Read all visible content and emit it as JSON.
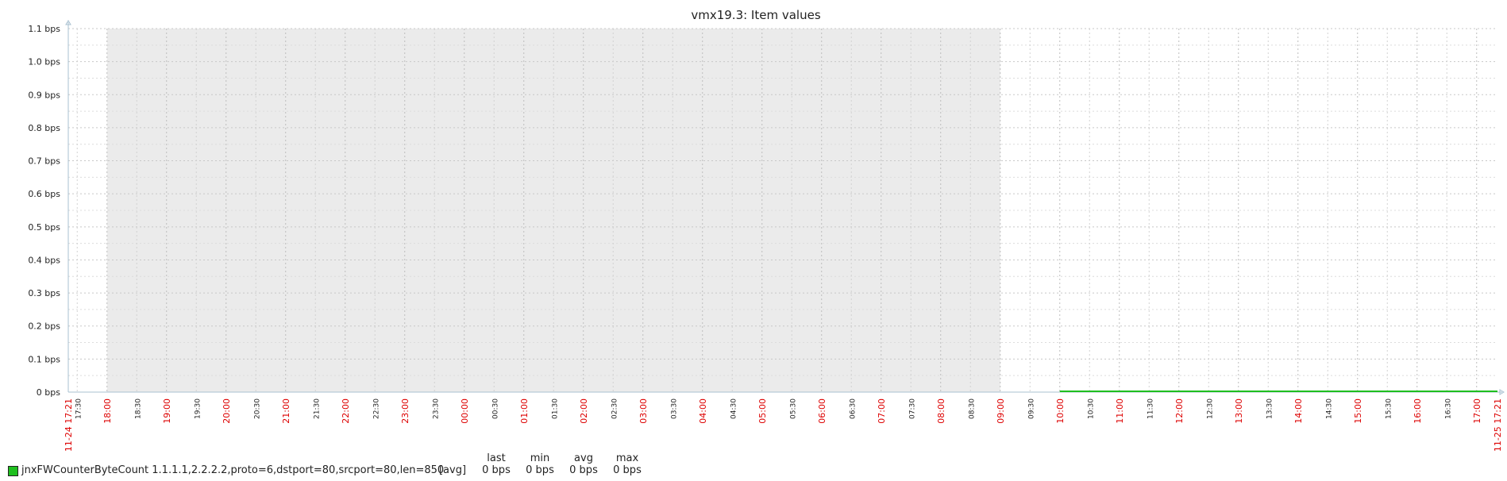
{
  "chart_data": {
    "type": "line",
    "title": "vmx19.3: Item values",
    "y_unit": "bps",
    "ylim": [
      0,
      1.1
    ],
    "y_ticks": [
      "0 bps",
      "0.1 bps",
      "0.2 bps",
      "0.3 bps",
      "0.4 bps",
      "0.5 bps",
      "0.6 bps",
      "0.7 bps",
      "0.8 bps",
      "0.9 bps",
      "1.0 bps",
      "1.1 bps"
    ],
    "x_range": [
      "11-24 17:21",
      "11-25 17:21"
    ],
    "x_start_label": "11-24 17:21",
    "x_end_label": "11-25 17:21",
    "x_ticks": [
      {
        "time": "11-24 17:30",
        "label": "17:30",
        "major": false
      },
      {
        "time": "11-24 18:00",
        "label": "18:00",
        "major": true
      },
      {
        "time": "11-24 18:30",
        "label": "18:30",
        "major": false
      },
      {
        "time": "11-24 19:00",
        "label": "19:00",
        "major": true
      },
      {
        "time": "11-24 19:30",
        "label": "19:30",
        "major": false
      },
      {
        "time": "11-24 20:00",
        "label": "20:00",
        "major": true
      },
      {
        "time": "11-24 20:30",
        "label": "20:30",
        "major": false
      },
      {
        "time": "11-24 21:00",
        "label": "21:00",
        "major": true
      },
      {
        "time": "11-24 21:30",
        "label": "21:30",
        "major": false
      },
      {
        "time": "11-24 22:00",
        "label": "22:00",
        "major": true
      },
      {
        "time": "11-24 22:30",
        "label": "22:30",
        "major": false
      },
      {
        "time": "11-24 23:00",
        "label": "23:00",
        "major": true
      },
      {
        "time": "11-24 23:30",
        "label": "23:30",
        "major": false
      },
      {
        "time": "11-25 00:00",
        "label": "00:00",
        "major": true
      },
      {
        "time": "11-25 00:30",
        "label": "00:30",
        "major": false
      },
      {
        "time": "11-25 01:00",
        "label": "01:00",
        "major": true
      },
      {
        "time": "11-25 01:30",
        "label": "01:30",
        "major": false
      },
      {
        "time": "11-25 02:00",
        "label": "02:00",
        "major": true
      },
      {
        "time": "11-25 02:30",
        "label": "02:30",
        "major": false
      },
      {
        "time": "11-25 03:00",
        "label": "03:00",
        "major": true
      },
      {
        "time": "11-25 03:30",
        "label": "03:30",
        "major": false
      },
      {
        "time": "11-25 04:00",
        "label": "04:00",
        "major": true
      },
      {
        "time": "11-25 04:30",
        "label": "04:30",
        "major": false
      },
      {
        "time": "11-25 05:00",
        "label": "05:00",
        "major": true
      },
      {
        "time": "11-25 05:30",
        "label": "05:30",
        "major": false
      },
      {
        "time": "11-25 06:00",
        "label": "06:00",
        "major": true
      },
      {
        "time": "11-25 06:30",
        "label": "06:30",
        "major": false
      },
      {
        "time": "11-25 07:00",
        "label": "07:00",
        "major": true
      },
      {
        "time": "11-25 07:30",
        "label": "07:30",
        "major": false
      },
      {
        "time": "11-25 08:00",
        "label": "08:00",
        "major": true
      },
      {
        "time": "11-25 08:30",
        "label": "08:30",
        "major": false
      },
      {
        "time": "11-25 09:00",
        "label": "09:00",
        "major": true
      },
      {
        "time": "11-25 09:30",
        "label": "09:30",
        "major": false
      },
      {
        "time": "11-25 10:00",
        "label": "10:00",
        "major": true
      },
      {
        "time": "11-25 10:30",
        "label": "10:30",
        "major": false
      },
      {
        "time": "11-25 11:00",
        "label": "11:00",
        "major": true
      },
      {
        "time": "11-25 11:30",
        "label": "11:30",
        "major": false
      },
      {
        "time": "11-25 12:00",
        "label": "12:00",
        "major": true
      },
      {
        "time": "11-25 12:30",
        "label": "12:30",
        "major": false
      },
      {
        "time": "11-25 13:00",
        "label": "13:00",
        "major": true
      },
      {
        "time": "11-25 13:30",
        "label": "13:30",
        "major": false
      },
      {
        "time": "11-25 14:00",
        "label": "14:00",
        "major": true
      },
      {
        "time": "11-25 14:30",
        "label": "14:30",
        "major": false
      },
      {
        "time": "11-25 15:00",
        "label": "15:00",
        "major": true
      },
      {
        "time": "11-25 15:30",
        "label": "15:30",
        "major": false
      },
      {
        "time": "11-25 16:00",
        "label": "16:00",
        "major": true
      },
      {
        "time": "11-25 16:30",
        "label": "16:30",
        "major": false
      },
      {
        "time": "11-25 17:00",
        "label": "17:00",
        "major": true
      }
    ],
    "shaded_range": [
      "11-24 18:00",
      "11-25 09:00"
    ],
    "series": [
      {
        "name": "jnxFWCounterByteCount 1.1.1.1,2.2.2.2,proto=6,dstport=80,srcport=80,len=850",
        "color": "#1fbf1f",
        "x": [
          "11-25 10:00",
          "11-25 17:21"
        ],
        "values": [
          0,
          0
        ]
      }
    ],
    "colors": {
      "major_tick_label": "#dd0000",
      "minor_tick_label": "#222222",
      "shaded_band": "#ebebeb",
      "grid": "#c8c8c8",
      "axis": "#a8c0d0"
    },
    "grid": true,
    "legend_position": "bottom-left"
  },
  "legend": {
    "headers": {
      "last": "last",
      "min": "min",
      "avg": "avg",
      "max": "max"
    },
    "rows": [
      {
        "name": "jnxFWCounterByteCount 1.1.1.1,2.2.2.2,proto=6,dstport=80,srcport=80,len=850",
        "func": "[avg]",
        "last": "0 bps",
        "min": "0 bps",
        "avg": "0 bps",
        "max": "0 bps"
      }
    ]
  }
}
